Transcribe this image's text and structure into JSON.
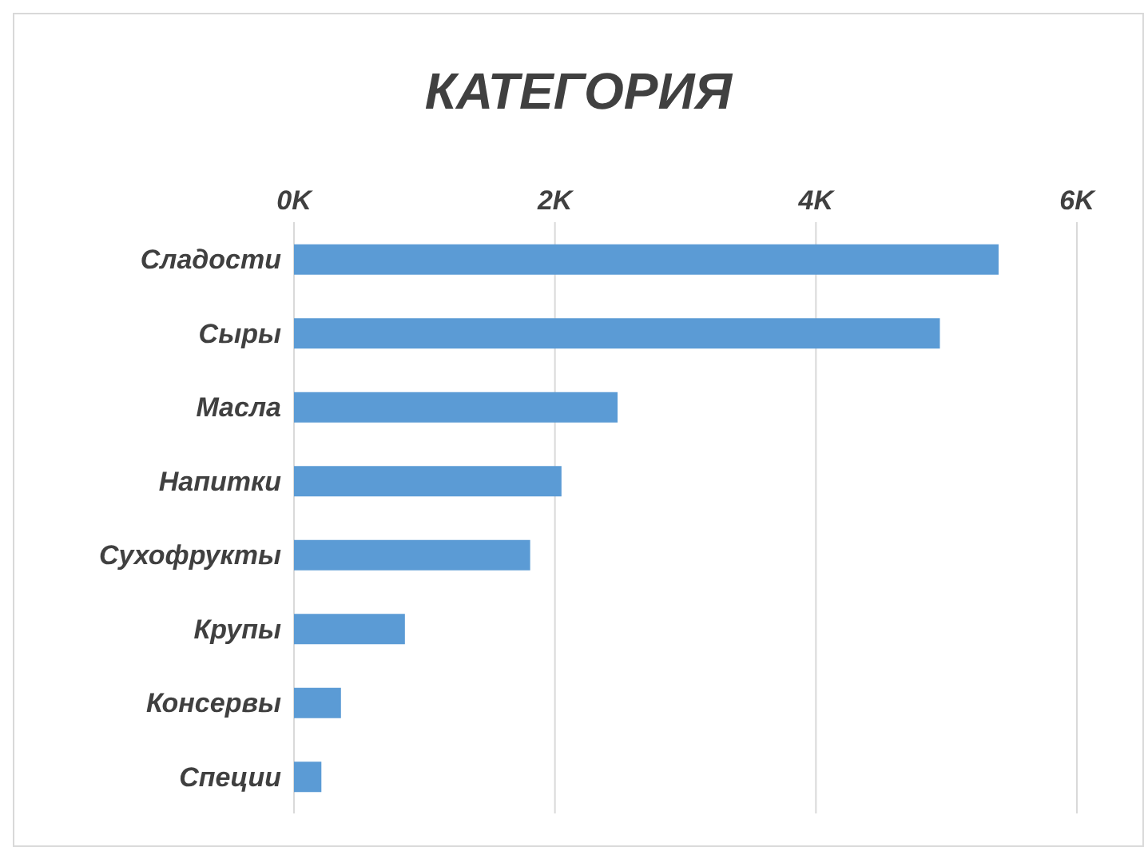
{
  "chart_data": {
    "type": "bar",
    "orientation": "horizontal",
    "title": "КАТЕГОРИЯ",
    "categories": [
      "Сладости",
      "Сыры",
      "Масла",
      "Напитки",
      "Сухофрукты",
      "Крупы",
      "Консервы",
      "Специи"
    ],
    "values": [
      5400,
      4950,
      2480,
      2050,
      1810,
      850,
      360,
      210
    ],
    "color": "#5b9bd5",
    "xlim": [
      0,
      6000
    ],
    "xticks": [
      {
        "value": 0,
        "label": "0K"
      },
      {
        "value": 2000,
        "label": "2K"
      },
      {
        "value": 4000,
        "label": "4K"
      },
      {
        "value": 6000,
        "label": "6K"
      }
    ],
    "grid": "x"
  }
}
